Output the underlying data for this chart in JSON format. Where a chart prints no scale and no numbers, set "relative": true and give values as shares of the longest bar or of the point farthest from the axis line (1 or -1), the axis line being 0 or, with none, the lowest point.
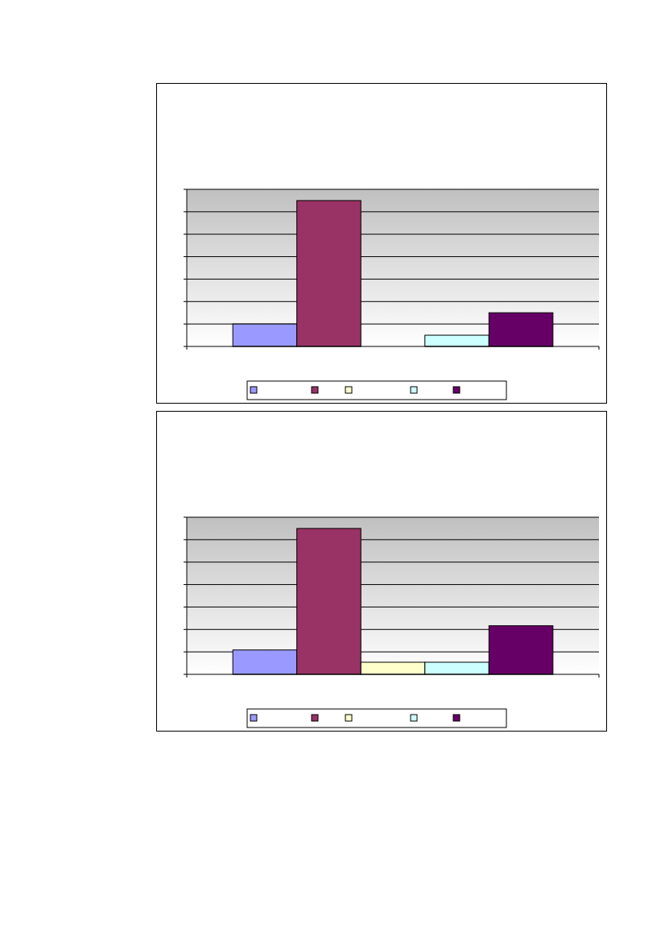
{
  "chart_data": [
    {
      "type": "bar",
      "relative": true,
      "categories": [
        null
      ],
      "grid": true,
      "series": [
        {
          "color": "#9999ff",
          "values": [
            0.154
          ]
        },
        {
          "color": "#993366",
          "values": [
            1
          ]
        },
        {
          "color": "#ffffcc",
          "values": [
            0
          ]
        },
        {
          "color": "#ccffff",
          "values": [
            0.077
          ]
        },
        {
          "color": "#660066",
          "values": [
            0.231
          ]
        }
      ]
    },
    {
      "type": "bar",
      "relative": true,
      "categories": [
        null
      ],
      "grid": true,
      "series": [
        {
          "color": "#9999ff",
          "values": [
            0.167
          ]
        },
        {
          "color": "#993366",
          "values": [
            1
          ]
        },
        {
          "color": "#ffffcc",
          "values": [
            0.083
          ]
        },
        {
          "color": "#ccffff",
          "values": [
            0.083
          ]
        },
        {
          "color": "#660066",
          "values": [
            0.333
          ]
        }
      ]
    }
  ]
}
